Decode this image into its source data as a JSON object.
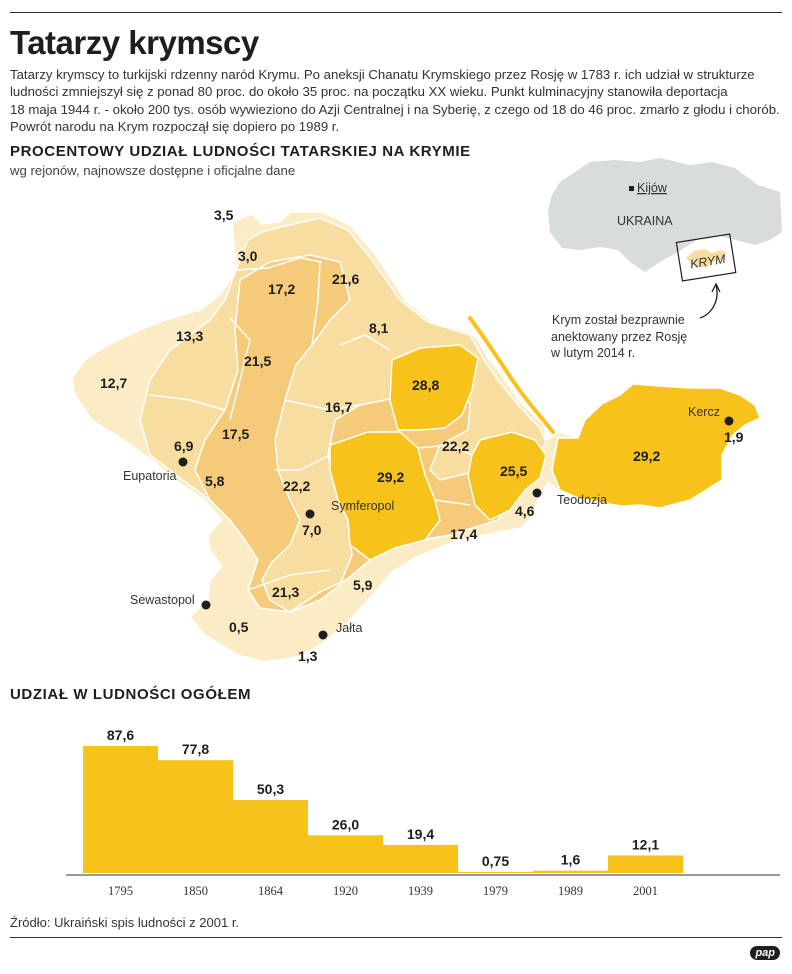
{
  "title": "Tatarzy krymscy",
  "intro": [
    "Tatarzy krymscy to turkijski rdzenny naród Krymu. Po aneksji Chanatu Krymskiego przez Rosję w 1783 r. ich udział w strukturze",
    "ludności zmniejszył się z ponad 80 proc. do około 35 proc. na początku XX wieku. Punkt kulminacyjny stanowiła deportacja",
    "18 maja 1944 r. - około 200 tys. osób wywieziono do Azji Centralnej i na Syberię, z czego od 18 do 46 proc. zmarło z głodu i chorób.",
    "Powrót narodu na Krym rozpoczął się dopiero po 1989 r."
  ],
  "map_heading": "PROCENTOWY UDZIAŁ LUDNOŚCI TATARSKIEJ NA KRYMIE",
  "map_subtitle": "wg rejonów, najnowsze dostępne i oficjalne dane",
  "colors": {
    "map_lightest": "#fbecc6",
    "map_light": "#f8dda0",
    "map_medium": "#f5ca78",
    "map_dark": "#f7c21a",
    "bar": "#f7c21a",
    "inset_land": "#d9dcdd"
  },
  "region_values": [
    "3,5",
    "3,0",
    "17,2",
    "21,6",
    "8,1",
    "13,3",
    "21,5",
    "12,7",
    "16,7",
    "28,8",
    "17,5",
    "6,9",
    "5,8",
    "22,2",
    "22,2",
    "29,2",
    "25,5",
    "29,2",
    "1,9",
    "4,6",
    "17,4",
    "7,0",
    "21,3",
    "5,9",
    "0,5",
    "1,3"
  ],
  "cities": {
    "eupatoria": "Eupatoria",
    "symferopol": "Symferopol",
    "sewastopol": "Sewastopol",
    "jalta": "Jałta",
    "teodozja": "Teodozja",
    "kercz": "Kercz"
  },
  "inset": {
    "capital": "Kijów",
    "country": "UKRAINA",
    "crimea": "KRYM",
    "note": [
      "Krym został bezprawnie",
      "anektowany przez Rosję",
      "w lutym 2014 r."
    ]
  },
  "chart_heading": "UDZIAŁ W LUDNOŚCI OGÓŁEM",
  "chart_data": {
    "type": "bar",
    "categories": [
      "1795",
      "1850",
      "1864",
      "1920",
      "1939",
      "1979",
      "1989",
      "2001"
    ],
    "values": [
      87.6,
      77.8,
      50.3,
      26.0,
      19.4,
      0.75,
      1.6,
      12.1
    ],
    "value_labels": [
      "87,6",
      "77,8",
      "50,3",
      "26,0",
      "19,4",
      "0,75",
      "1,6",
      "12,1"
    ],
    "title": "UDZIAŁ W LUDNOŚCI OGÓŁEM",
    "ylim": [
      0,
      87.6
    ],
    "grid": false
  },
  "source": "Źródło: Ukraiński spis ludności z 2001 r.",
  "logo": "pap"
}
